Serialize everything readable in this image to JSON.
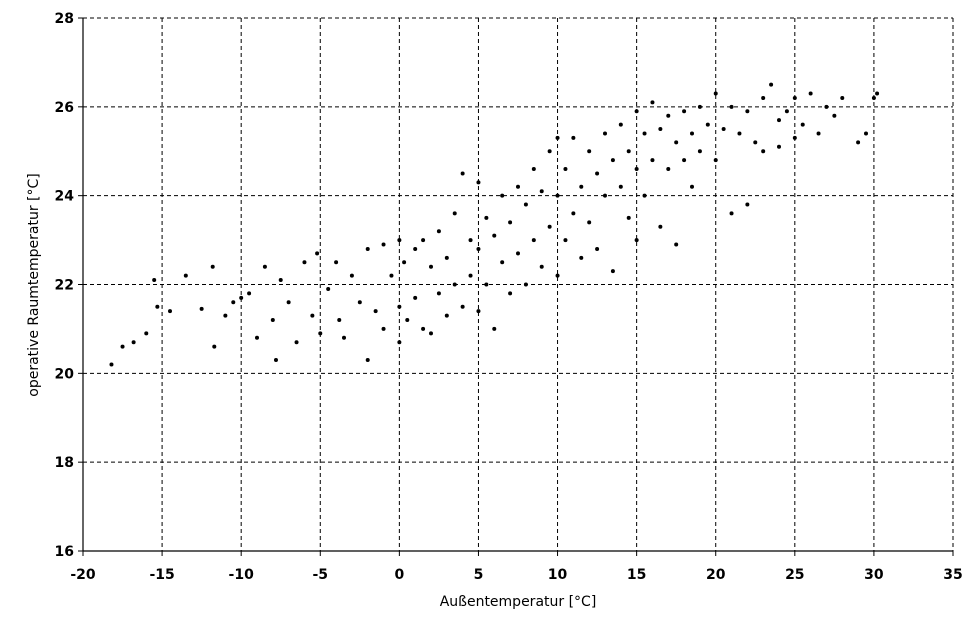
{
  "chart_data": {
    "type": "scatter",
    "xlabel": "Außentemperatur [°C]",
    "ylabel": "operative Raumtemperatur [°C]",
    "color": "#000000",
    "grid": true,
    "xlim": [
      -20,
      35
    ],
    "ylim": [
      16,
      28
    ],
    "xticks": [
      -20,
      -15,
      -10,
      -5,
      0,
      5,
      10,
      15,
      20,
      25,
      30,
      35
    ],
    "yticks": [
      16,
      18,
      20,
      22,
      24,
      26,
      28
    ],
    "x": [
      -18.2,
      -17.5,
      -16.8,
      -16,
      -15.5,
      -15.3,
      -14.5,
      -13.5,
      -12.5,
      -11.8,
      -11.7,
      -11,
      -10.5,
      -10,
      -9.5,
      -9,
      -8.5,
      -8,
      -7.8,
      -7.5,
      -7,
      -6.5,
      -6,
      -5.5,
      -5.2,
      -5,
      -4.5,
      -4,
      -3.8,
      -3.5,
      -3,
      -2.5,
      -2,
      -2,
      -1.5,
      -1,
      -1,
      -0.5,
      0,
      0,
      0,
      0.3,
      0.5,
      1,
      1,
      1.5,
      1.5,
      2,
      2,
      2.5,
      2.5,
      3,
      3,
      3.5,
      3.5,
      4,
      4,
      4.5,
      4.5,
      5,
      5,
      5,
      5.5,
      5.5,
      6,
      6,
      6.5,
      6.5,
      7,
      7,
      7.5,
      7.5,
      8,
      8,
      8.5,
      8.5,
      9,
      9,
      9.5,
      9.5,
      10,
      10,
      10,
      10.5,
      10.5,
      11,
      11,
      11.5,
      11.5,
      12,
      12,
      12.5,
      12.5,
      13,
      13,
      13.5,
      13.5,
      14,
      14,
      14.5,
      14.5,
      15,
      15,
      15,
      15.5,
      15.5,
      16,
      16,
      16.5,
      16.5,
      17,
      17,
      17.5,
      17.5,
      18,
      18,
      18.5,
      18.5,
      19,
      19,
      19.5,
      20,
      20,
      20.5,
      21,
      21,
      21.5,
      22,
      22,
      22.5,
      23,
      23,
      23.5,
      24,
      24,
      24.5,
      25,
      25,
      25.5,
      26,
      26.5,
      27,
      27.5,
      28,
      29,
      29.5,
      30,
      30.2
    ],
    "values": [
      20.2,
      20.6,
      20.7,
      20.9,
      22.1,
      21.5,
      21.4,
      22.2,
      21.45,
      22.4,
      20.6,
      21.3,
      21.6,
      21.7,
      21.8,
      20.8,
      22.4,
      21.2,
      20.3,
      22.1,
      21.6,
      20.7,
      22.5,
      21.3,
      22.7,
      20.9,
      21.9,
      22.5,
      21.2,
      20.8,
      22.2,
      21.6,
      22.8,
      20.3,
      21.4,
      22.9,
      21.0,
      22.2,
      23.0,
      21.5,
      20.7,
      22.5,
      21.2,
      22.8,
      21.7,
      23.0,
      21.0,
      22.4,
      20.9,
      23.2,
      21.8,
      22.6,
      21.3,
      23.6,
      22.0,
      24.5,
      21.5,
      23.0,
      22.2,
      24.3,
      22.8,
      21.4,
      23.5,
      22.0,
      23.1,
      21.0,
      24.0,
      22.5,
      23.4,
      21.8,
      24.2,
      22.7,
      23.8,
      22.0,
      24.6,
      23.0,
      24.1,
      22.4,
      25.0,
      23.3,
      25.3,
      24.0,
      22.2,
      24.6,
      23.0,
      25.3,
      23.6,
      24.2,
      22.6,
      25.0,
      23.4,
      24.5,
      22.8,
      25.4,
      24.0,
      24.8,
      22.3,
      25.6,
      24.2,
      25.0,
      23.5,
      25.9,
      24.6,
      23.0,
      25.4,
      24.0,
      26.1,
      24.8,
      25.5,
      23.3,
      25.8,
      24.6,
      25.2,
      22.9,
      25.9,
      24.8,
      25.4,
      24.2,
      26.0,
      25.0,
      25.6,
      26.3,
      24.8,
      25.5,
      26.0,
      23.6,
      25.4,
      25.9,
      23.8,
      25.2,
      26.2,
      25.0,
      26.5,
      25.7,
      25.1,
      25.9,
      26.2,
      25.3,
      25.6,
      26.3,
      25.4,
      26.0,
      25.8,
      26.2,
      25.2,
      25.4,
      26.2,
      26.3
    ]
  }
}
